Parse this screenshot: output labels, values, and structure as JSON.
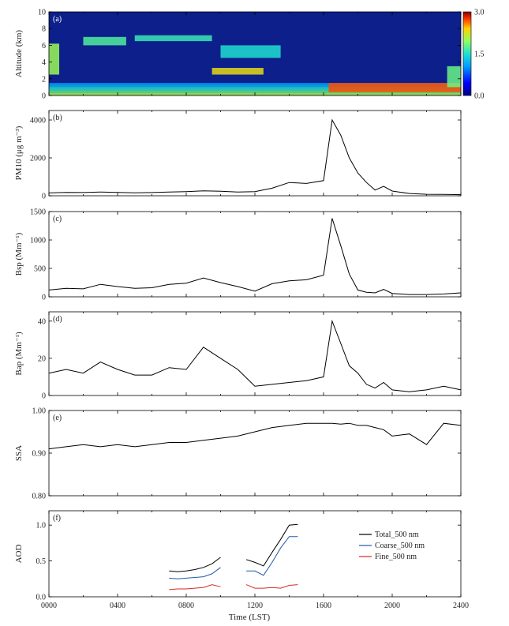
{
  "xaxis": {
    "label": "Time (LST)",
    "ticks": [
      "0000",
      "0400",
      "0800",
      "1200",
      "1600",
      "2000",
      "2400"
    ]
  },
  "chart_data": [
    {
      "panel": "(a)",
      "type": "heatmap",
      "ylabel": "Altitude (km)",
      "ylim": [
        0,
        10
      ],
      "yticks": [
        "0",
        "2",
        "4",
        "6",
        "8",
        "10"
      ],
      "colorbar": {
        "ticks": [
          "0.0",
          "1.5",
          "3.0"
        ],
        "range": [
          0,
          3
        ]
      },
      "features": [
        {
          "x": [
            0.0,
            0.6
          ],
          "alt": [
            2.5,
            6.2
          ],
          "level": 2.0
        },
        {
          "x": [
            2.0,
            4.5
          ],
          "alt": [
            6.0,
            7.0
          ],
          "level": 1.7
        },
        {
          "x": [
            5.0,
            9.5
          ],
          "alt": [
            6.5,
            7.2
          ],
          "level": 1.6
        },
        {
          "x": [
            10.0,
            13.5
          ],
          "alt": [
            4.5,
            6.0
          ],
          "level": 1.5
        },
        {
          "x": [
            9.5,
            12.5
          ],
          "alt": [
            2.5,
            3.3
          ],
          "level": 2.3
        },
        {
          "x": [
            16.3,
            24.0
          ],
          "alt": [
            0.4,
            1.5
          ],
          "level": 2.7
        },
        {
          "x": [
            23.2,
            24.0
          ],
          "alt": [
            1.0,
            3.5
          ],
          "level": 1.8
        }
      ]
    },
    {
      "panel": "(b)",
      "type": "line",
      "ylabel": "PM10 (μg m⁻³)",
      "ylim": [
        0,
        4500
      ],
      "yticks": [
        "0",
        "2000",
        "4000"
      ],
      "x": [
        0,
        1,
        2,
        3,
        4,
        5,
        6,
        7,
        8,
        9,
        10,
        11,
        12,
        13,
        14,
        15,
        16,
        16.5,
        17,
        17.5,
        18,
        18.5,
        19,
        19.5,
        20,
        21,
        22,
        23,
        24
      ],
      "y": [
        150,
        180,
        170,
        200,
        180,
        160,
        170,
        200,
        220,
        260,
        240,
        200,
        220,
        400,
        700,
        650,
        800,
        4000,
        3200,
        2000,
        1200,
        700,
        300,
        500,
        250,
        120,
        80,
        70,
        60
      ]
    },
    {
      "panel": "(c)",
      "type": "line",
      "ylabel": "Bsp (Mm⁻¹)",
      "ylim": [
        0,
        1500
      ],
      "yticks": [
        "0",
        "500",
        "1000",
        "1500"
      ],
      "x": [
        0,
        1,
        2,
        3,
        4,
        5,
        6,
        7,
        8,
        9,
        10,
        11,
        12,
        13,
        14,
        15,
        16,
        16.5,
        17,
        17.5,
        18,
        18.5,
        19,
        19.5,
        20,
        21,
        22,
        23,
        24
      ],
      "y": [
        120,
        150,
        140,
        220,
        180,
        150,
        160,
        220,
        240,
        330,
        250,
        180,
        100,
        230,
        280,
        300,
        380,
        1380,
        900,
        400,
        120,
        80,
        70,
        130,
        60,
        40,
        40,
        50,
        70
      ]
    },
    {
      "panel": "(d)",
      "type": "line",
      "ylabel": "Bap (Mm⁻¹)",
      "ylim": [
        0,
        45
      ],
      "yticks": [
        "0",
        "20",
        "40"
      ],
      "x": [
        0,
        1,
        2,
        3,
        4,
        5,
        6,
        7,
        8,
        9,
        10,
        11,
        12,
        13,
        14,
        15,
        16,
        16.5,
        17,
        17.5,
        18,
        18.5,
        19,
        19.5,
        20,
        21,
        22,
        23,
        24
      ],
      "y": [
        12,
        14,
        12,
        18,
        14,
        11,
        11,
        15,
        14,
        26,
        20,
        14,
        5,
        6,
        7,
        8,
        10,
        40,
        28,
        16,
        12,
        6,
        4,
        7,
        3,
        2,
        3,
        5,
        3
      ]
    },
    {
      "panel": "(e)",
      "type": "line",
      "ylabel": "SSA",
      "ylim": [
        0.8,
        1.0
      ],
      "yticks": [
        "0.80",
        "0.90",
        "1.00"
      ],
      "x": [
        0,
        1,
        2,
        3,
        4,
        5,
        6,
        7,
        8,
        9,
        10,
        11,
        12,
        13,
        14,
        15,
        16,
        16.5,
        17,
        17.5,
        18,
        18.5,
        19,
        19.5,
        20,
        21,
        22,
        23,
        24
      ],
      "y": [
        0.91,
        0.915,
        0.92,
        0.915,
        0.92,
        0.915,
        0.92,
        0.925,
        0.925,
        0.93,
        0.935,
        0.94,
        0.95,
        0.96,
        0.965,
        0.97,
        0.97,
        0.97,
        0.968,
        0.97,
        0.965,
        0.965,
        0.96,
        0.955,
        0.94,
        0.945,
        0.92,
        0.97,
        0.965
      ]
    },
    {
      "panel": "(f)",
      "type": "line",
      "ylabel": "AOD",
      "ylim": [
        0,
        1.2
      ],
      "yticks": [
        "0.0",
        "0.5",
        "1.0"
      ],
      "legend_position": "bottom-right",
      "series": [
        {
          "name": "Total_500 nm",
          "color": "#000000",
          "x": [
            7,
            7.5,
            8,
            8.5,
            9,
            9.5,
            10,
            null,
            11.5,
            12,
            12.5,
            13,
            13.5,
            14,
            14.5
          ],
          "y": [
            0.36,
            0.35,
            0.36,
            0.38,
            0.41,
            0.46,
            0.55,
            null,
            0.52,
            0.48,
            0.43,
            0.62,
            0.8,
            1.0,
            1.01
          ]
        },
        {
          "name": "Coarse_500 nm",
          "color": "#1f5aa8",
          "x": [
            7,
            7.5,
            8,
            8.5,
            9,
            9.5,
            10,
            null,
            11.5,
            12,
            12.5,
            13,
            13.5,
            14,
            14.5
          ],
          "y": [
            0.26,
            0.25,
            0.26,
            0.27,
            0.28,
            0.32,
            0.41,
            null,
            0.36,
            0.36,
            0.3,
            0.48,
            0.68,
            0.84,
            0.84
          ]
        },
        {
          "name": "Fine_500 nm",
          "color": "#d62a23",
          "x": [
            7,
            7.5,
            8,
            8.5,
            9,
            9.5,
            10,
            null,
            11.5,
            12,
            12.5,
            13,
            13.5,
            14,
            14.5
          ],
          "y": [
            0.1,
            0.11,
            0.11,
            0.12,
            0.13,
            0.17,
            0.14,
            null,
            0.17,
            0.12,
            0.12,
            0.13,
            0.12,
            0.16,
            0.17
          ]
        }
      ]
    }
  ]
}
